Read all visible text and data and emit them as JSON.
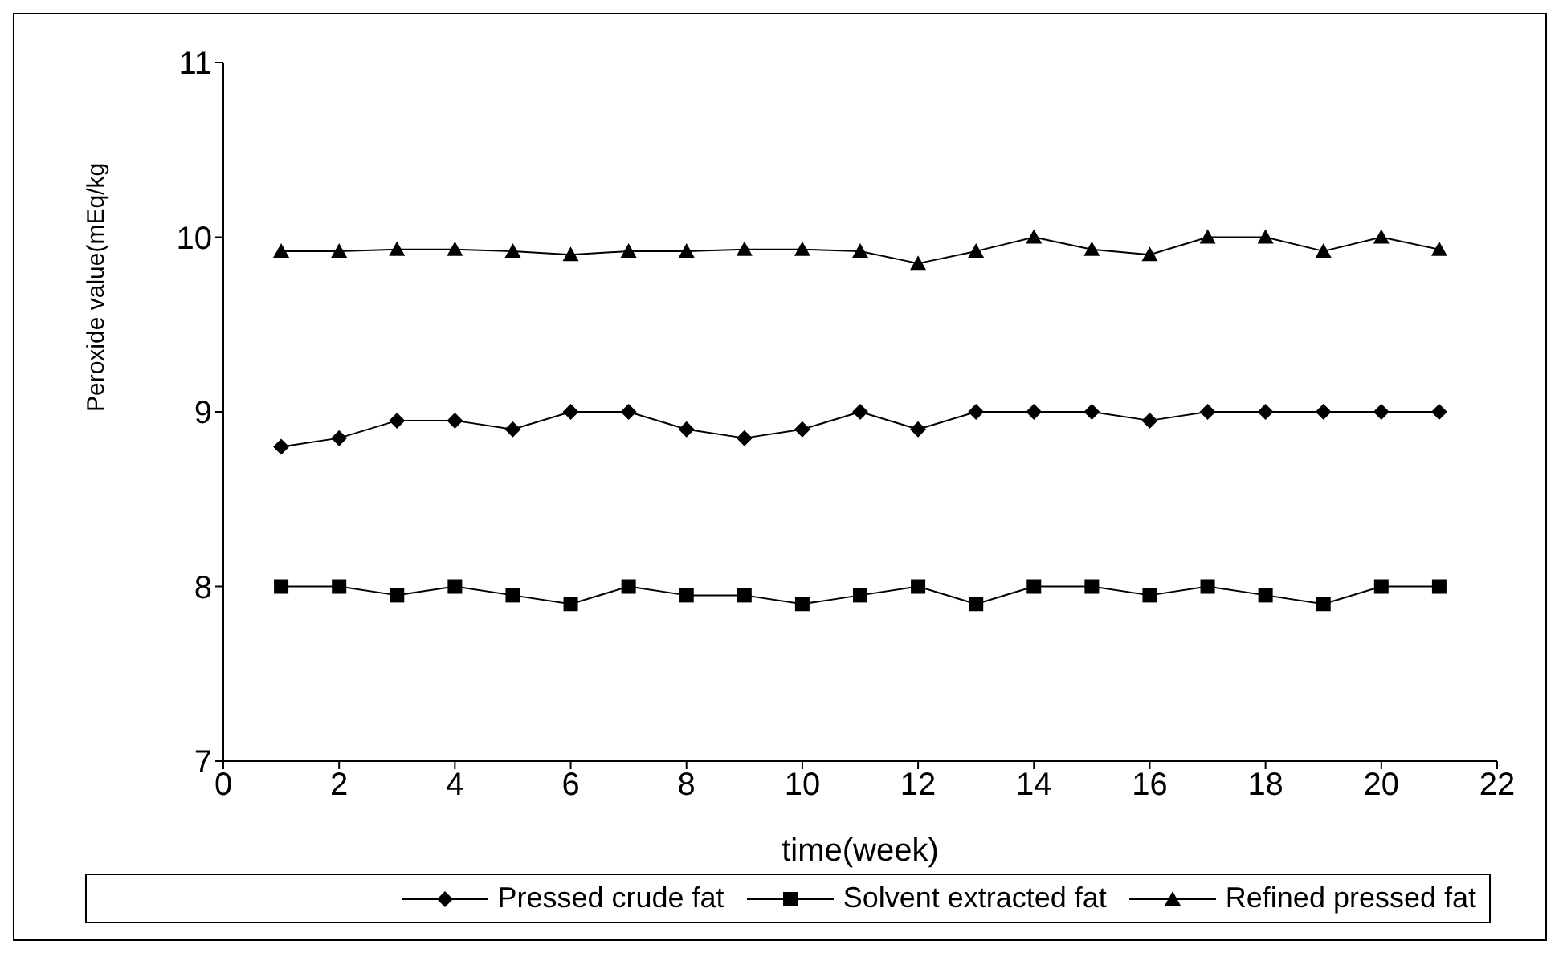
{
  "chart_data": {
    "type": "line",
    "xlabel": "time(week)",
    "ylabel": "Peroxide value(mEq/kg",
    "x": [
      1,
      2,
      3,
      4,
      5,
      6,
      7,
      8,
      9,
      10,
      11,
      12,
      13,
      14,
      15,
      16,
      17,
      18,
      19,
      20,
      21
    ],
    "series": [
      {
        "name": "Pressed crude fat",
        "color": "#000000",
        "marker": "diamond",
        "values": [
          8.8,
          8.85,
          8.95,
          8.95,
          8.9,
          9,
          9,
          8.9,
          8.85,
          8.9,
          9,
          8.9,
          9,
          9,
          9,
          8.95,
          9,
          9,
          9,
          9,
          9
        ]
      },
      {
        "name": "Solvent extracted fat",
        "color": "#000000",
        "marker": "square",
        "values": [
          8,
          8,
          7.95,
          8,
          7.95,
          7.9,
          8,
          7.95,
          7.95,
          7.9,
          7.95,
          8,
          7.9,
          8,
          8,
          7.95,
          8,
          7.95,
          7.9,
          8,
          8
        ]
      },
      {
        "name": "Refined pressed fat",
        "color": "#000000",
        "marker": "triangle",
        "values": [
          9.92,
          9.92,
          9.93,
          9.93,
          9.92,
          9.9,
          9.92,
          9.92,
          9.93,
          9.93,
          9.92,
          9.85,
          9.92,
          10,
          9.93,
          9.9,
          10,
          10,
          9.92,
          10,
          9.93
        ]
      }
    ],
    "xlim": [
      0,
      22
    ],
    "xticks": [
      0,
      2,
      4,
      6,
      8,
      10,
      12,
      14,
      16,
      18,
      20,
      22
    ],
    "ylim": [
      7,
      11
    ],
    "yticks": [
      7,
      8,
      9,
      10,
      11
    ],
    "grid": false,
    "legend": "bottom",
    "line_style": "solid"
  }
}
